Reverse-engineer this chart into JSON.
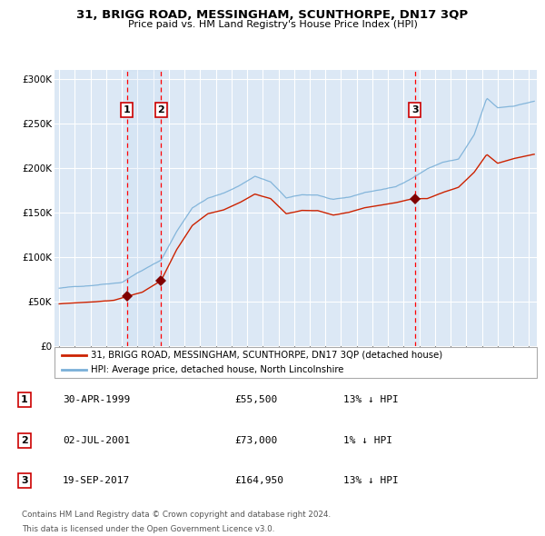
{
  "title": "31, BRIGG ROAD, MESSINGHAM, SCUNTHORPE, DN17 3QP",
  "subtitle": "Price paid vs. HM Land Registry's House Price Index (HPI)",
  "background_color": "#ffffff",
  "plot_bg_color": "#dce8f5",
  "grid_color": "#ffffff",
  "sale1": {
    "date_num": 1999.33,
    "price": 55500,
    "label": "1"
  },
  "sale2": {
    "date_num": 2001.5,
    "price": 73000,
    "label": "2"
  },
  "sale3": {
    "date_num": 2017.72,
    "price": 164950,
    "label": "3"
  },
  "hpi_color": "#7ab0d8",
  "prop_color": "#cc2200",
  "marker_color": "#800000",
  "legend_line1": "31, BRIGG ROAD, MESSINGHAM, SCUNTHORPE, DN17 3QP (detached house)",
  "legend_line2": "HPI: Average price, detached house, North Lincolnshire",
  "table_rows": [
    {
      "num": "1",
      "date": "30-APR-1999",
      "price": "£55,500",
      "note": "13% ↓ HPI"
    },
    {
      "num": "2",
      "date": "02-JUL-2001",
      "price": "£73,000",
      "note": "1% ↓ HPI"
    },
    {
      "num": "3",
      "date": "19-SEP-2017",
      "price": "£164,950",
      "note": "13% ↓ HPI"
    }
  ],
  "footnote1": "Contains HM Land Registry data © Crown copyright and database right 2024.",
  "footnote2": "This data is licensed under the Open Government Licence v3.0.",
  "xmin": 1994.7,
  "xmax": 2025.5,
  "ymin": 0,
  "ymax": 310000
}
